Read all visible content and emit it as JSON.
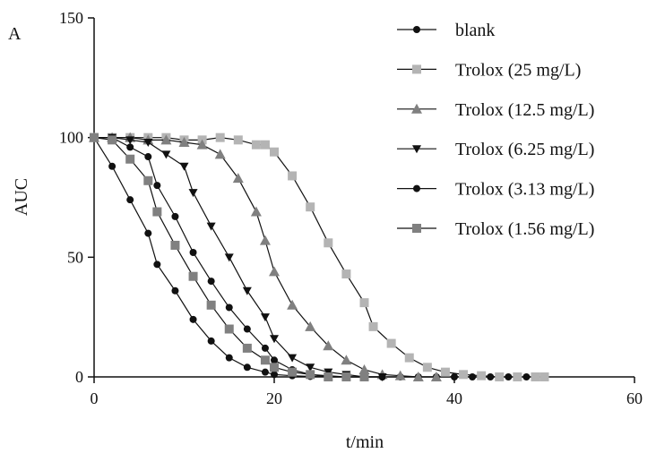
{
  "chart_data": {
    "type": "line",
    "panel_label": "A",
    "title": "",
    "xlabel": "t/min",
    "ylabel": "AUC",
    "xlim": [
      0,
      60
    ],
    "ylim": [
      0,
      150
    ],
    "xticks": [
      0,
      20,
      40,
      60
    ],
    "yticks": [
      0,
      50,
      100,
      150
    ],
    "grid": false,
    "legend_position": "top-right",
    "series": [
      {
        "name": "blank",
        "marker": "circle",
        "color": "#111111",
        "x": [
          0,
          2,
          4,
          6,
          7,
          9,
          11,
          13,
          15,
          17,
          19,
          20,
          22,
          24,
          26,
          28,
          30,
          32,
          34,
          36,
          38,
          40,
          42,
          44,
          46,
          48,
          50
        ],
        "y": [
          100,
          88,
          74,
          60,
          47,
          36,
          24,
          15,
          8,
          4,
          2,
          1,
          0.5,
          0.2,
          0,
          0,
          0,
          0,
          0,
          0,
          0,
          0,
          0,
          0,
          0,
          0,
          0
        ]
      },
      {
        "name": "Trolox (25 mg/L)",
        "marker": "square",
        "color": "#b4b4b4",
        "x": [
          0,
          2,
          4,
          6,
          8,
          10,
          12,
          14,
          16,
          18,
          19,
          20,
          22,
          24,
          26,
          28,
          30,
          31,
          33,
          35,
          37,
          39,
          41,
          43,
          45,
          47,
          49,
          50
        ],
        "y": [
          100,
          100,
          100,
          100,
          100,
          99,
          99,
          100,
          99,
          97,
          97,
          94,
          84,
          71,
          56,
          43,
          31,
          21,
          14,
          8,
          4,
          2,
          1,
          0.5,
          0,
          0,
          0,
          0
        ]
      },
      {
        "name": "Trolox (12.5 mg/L)",
        "marker": "triangle-up",
        "color": "#808080",
        "x": [
          0,
          2,
          4,
          6,
          8,
          10,
          12,
          14,
          16,
          18,
          19,
          20,
          22,
          24,
          26,
          28,
          30,
          32,
          34,
          36,
          38
        ],
        "y": [
          100,
          100,
          100,
          99,
          99,
          98,
          97,
          93,
          83,
          69,
          57,
          44,
          30,
          21,
          13,
          7,
          3,
          1,
          0.5,
          0,
          0
        ]
      },
      {
        "name": "Trolox (6.25 mg/L)",
        "marker": "triangle-down",
        "color": "#111111",
        "x": [
          0,
          2,
          4,
          6,
          8,
          10,
          11,
          13,
          15,
          17,
          19,
          20,
          22,
          24,
          26,
          28,
          30,
          32
        ],
        "y": [
          100,
          100,
          99,
          98,
          93,
          88,
          77,
          63,
          50,
          36,
          25,
          16,
          8,
          4,
          2,
          1,
          0,
          0
        ]
      },
      {
        "name": "Trolox (3.13 mg/L)",
        "marker": "circle",
        "color": "#111111",
        "x": [
          0,
          2,
          4,
          6,
          7,
          9,
          11,
          13,
          15,
          17,
          19,
          20,
          22,
          24,
          26,
          28,
          30,
          32
        ],
        "y": [
          100,
          100,
          96,
          92,
          80,
          67,
          52,
          40,
          29,
          20,
          12,
          7,
          3,
          1,
          0.5,
          0,
          0,
          0
        ]
      },
      {
        "name": "Trolox (1.56 mg/L)",
        "marker": "square",
        "color": "#808080",
        "x": [
          0,
          2,
          4,
          6,
          7,
          9,
          11,
          13,
          15,
          17,
          19,
          20,
          22,
          24,
          26,
          28,
          30
        ],
        "y": [
          100,
          99,
          91,
          82,
          69,
          55,
          42,
          30,
          20,
          12,
          7,
          4,
          2,
          1,
          0,
          0,
          0
        ]
      }
    ]
  }
}
